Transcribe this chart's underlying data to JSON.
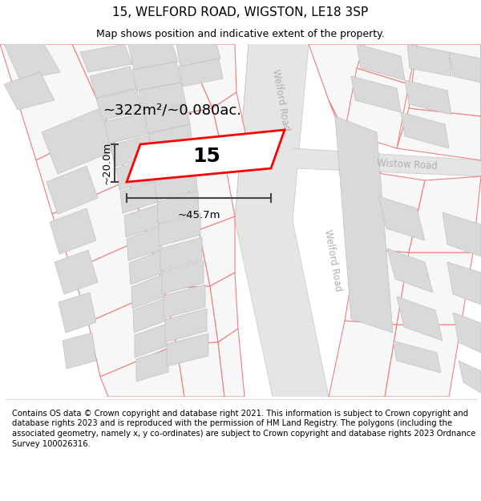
{
  "title": "15, WELFORD ROAD, WIGSTON, LE18 3SP",
  "subtitle": "Map shows position and indicative extent of the property.",
  "footer": "Contains OS data © Crown copyright and database right 2021. This information is subject to Crown copyright and database rights 2023 and is reproduced with the permission of HM Land Registry. The polygons (including the associated geometry, namely x, y co-ordinates) are subject to Crown copyright and database rights 2023 Ordnance Survey 100026316.",
  "map_bg": "#f7f7f7",
  "road_color": "#e5e5e5",
  "road_border": "#cccccc",
  "plot_fill": "#ffffff",
  "plot_border": "#ff0000",
  "building_fill": "#d9d9d9",
  "building_border": "#c0c0c0",
  "other_plot_border": "#f08080",
  "area_text": "~322m²/~0.080ac.",
  "width_text": "~45.7m",
  "height_text": "~20.0m",
  "number_text": "15",
  "road_label1": "Welford Road",
  "road_label2": "Welford Road",
  "road_label3": "Wistow Road",
  "title_fontsize": 11,
  "subtitle_fontsize": 9,
  "footer_fontsize": 7.2,
  "annot_color": "#444444"
}
